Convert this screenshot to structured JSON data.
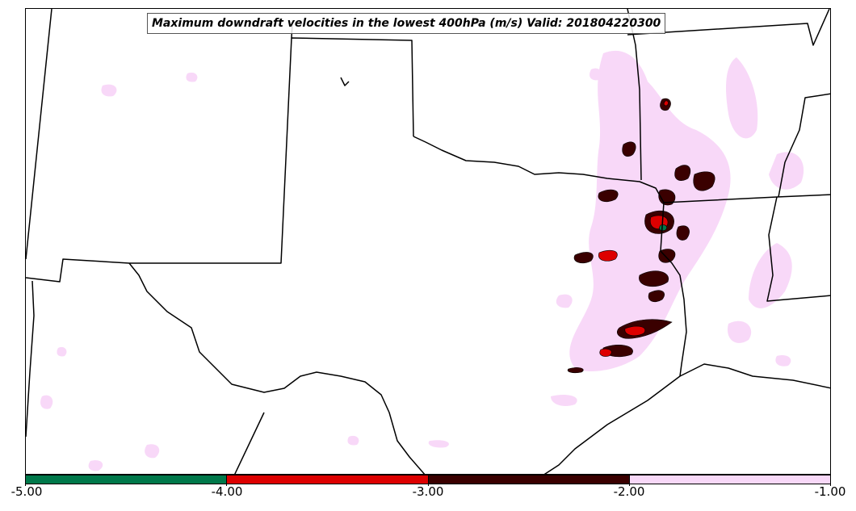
{
  "map": {
    "title": "Maximum downdraft velocities in the lowest 400hPa (m/s) Valid: 201804220300",
    "colors": {
      "border": "#000000",
      "light_pink": "#f8d8f8",
      "dark_red": "#3a0000",
      "red": "#dd0000",
      "green": "#00784a"
    }
  },
  "colorbar": {
    "segments": [
      {
        "from": -5.0,
        "to": -4.0,
        "color": "#00784a"
      },
      {
        "from": -4.0,
        "to": -3.0,
        "color": "#dd0000"
      },
      {
        "from": -3.0,
        "to": -2.0,
        "color": "#3a0000"
      },
      {
        "from": -2.0,
        "to": -1.0,
        "color": "#f8d8f8"
      }
    ],
    "tick_labels": [
      "-5.00",
      "-4.00",
      "-3.00",
      "-2.00",
      "-1.00"
    ]
  }
}
